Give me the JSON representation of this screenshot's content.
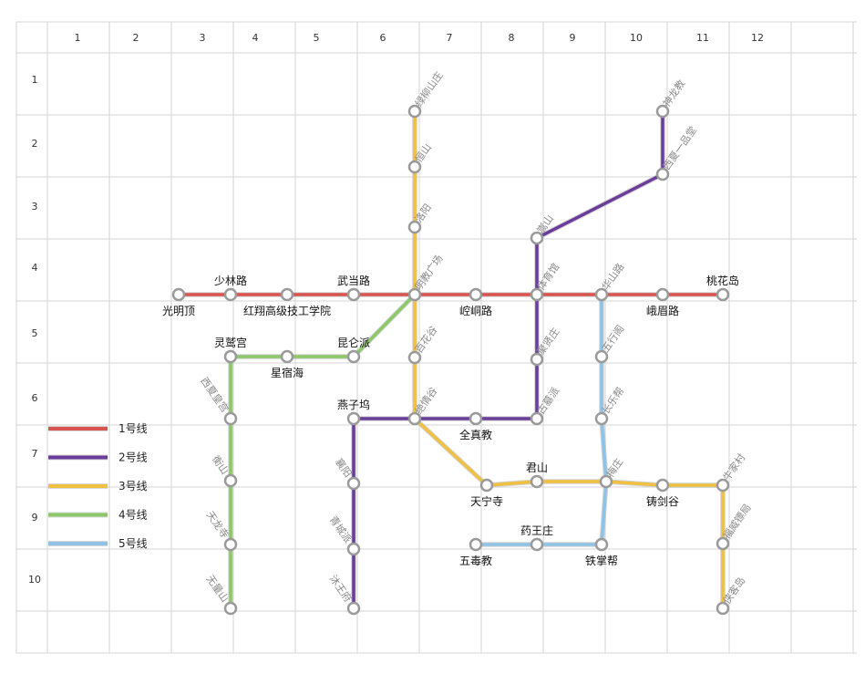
{
  "grid": {
    "column_headers": [
      "1",
      "2",
      "3",
      "4",
      "5",
      "6",
      "7",
      "8",
      "9",
      "10",
      "11",
      "12"
    ],
    "row_headers": [
      "1",
      "2",
      "3",
      "4",
      "5",
      "6",
      "7",
      "8",
      "9",
      "10"
    ]
  },
  "colors": {
    "line1": "#d9534f",
    "line2": "#6a3d9a",
    "line3": "#f0c040",
    "line4": "#8cc86a",
    "line5": "#8fc3e6",
    "station_stroke": "#9a9a9a"
  },
  "legend": [
    {
      "label": "1号线",
      "color": "#d9534f"
    },
    {
      "label": "2号线",
      "color": "#6a3d9a"
    },
    {
      "label": "3号线",
      "color": "#f0c040"
    },
    {
      "label": "4号线",
      "color": "#8cc86a"
    },
    {
      "label": "5号线",
      "color": "#8fc3e6"
    }
  ],
  "stations": [
    {
      "id": "guangmingding",
      "name": "光明顶"
    },
    {
      "id": "shaolinlu",
      "name": "少林路"
    },
    {
      "id": "hongxiang",
      "name": "红翔高级技工学院"
    },
    {
      "id": "wudanglu",
      "name": "武当路"
    },
    {
      "id": "mingjiao",
      "name": "明教广场"
    },
    {
      "id": "kongtonglu",
      "name": "崆峒路"
    },
    {
      "id": "tiyuguan",
      "name": "体育馆"
    },
    {
      "id": "huashanlu",
      "name": "华山路"
    },
    {
      "id": "emeilu",
      "name": "峨眉路"
    },
    {
      "id": "taohuadao",
      "name": "桃花岛"
    },
    {
      "id": "lvliu",
      "name": "绿柳山庄"
    },
    {
      "id": "hengshan",
      "name": "恒山"
    },
    {
      "id": "luoyang",
      "name": "洛阳"
    },
    {
      "id": "baihuagu",
      "name": "百花谷"
    },
    {
      "id": "jueqinggu",
      "name": "绝情谷"
    },
    {
      "id": "tianningsi",
      "name": "天宁寺"
    },
    {
      "id": "junshan",
      "name": "君山"
    },
    {
      "id": "meizhuang",
      "name": "梅庄"
    },
    {
      "id": "zhujiangu",
      "name": "铸剑谷"
    },
    {
      "id": "niujiacun",
      "name": "牛家村"
    },
    {
      "id": "fuweibiaoju",
      "name": "福威镖局"
    },
    {
      "id": "xiakedao",
      "name": "侠客岛"
    },
    {
      "id": "shenlongjiao",
      "name": "神龙教"
    },
    {
      "id": "xixiayipin",
      "name": "西夏一品堂"
    },
    {
      "id": "songshan",
      "name": "嵩山"
    },
    {
      "id": "juxianzhuang",
      "name": "聚贤庄"
    },
    {
      "id": "gumupai",
      "name": "古墓派"
    },
    {
      "id": "quanzhenjiao",
      "name": "全真教"
    },
    {
      "id": "yanziwu",
      "name": "燕子坞"
    },
    {
      "id": "xiangyang",
      "name": "襄阳"
    },
    {
      "id": "qingchengpai",
      "name": "青城派"
    },
    {
      "id": "mugongfu",
      "name": "沐王府"
    },
    {
      "id": "lingjiugong",
      "name": "灵鹫宫"
    },
    {
      "id": "xingxiuhai",
      "name": "星宿海"
    },
    {
      "id": "kunlunpai",
      "name": "昆仑派"
    },
    {
      "id": "xixiahuanggong",
      "name": "西夏皇宫"
    },
    {
      "id": "hengshan2",
      "name": "衡山"
    },
    {
      "id": "tianlongsi",
      "name": "天龙寺"
    },
    {
      "id": "wuliangshan",
      "name": "无量山"
    },
    {
      "id": "wuxiang",
      "name": "五行阁"
    },
    {
      "id": "changlebang",
      "name": "长乐帮"
    },
    {
      "id": "tiezhangbang",
      "name": "铁掌帮"
    },
    {
      "id": "yaowangzhuang",
      "name": "药王庄"
    },
    {
      "id": "wudujiao",
      "name": "五毒教"
    }
  ]
}
